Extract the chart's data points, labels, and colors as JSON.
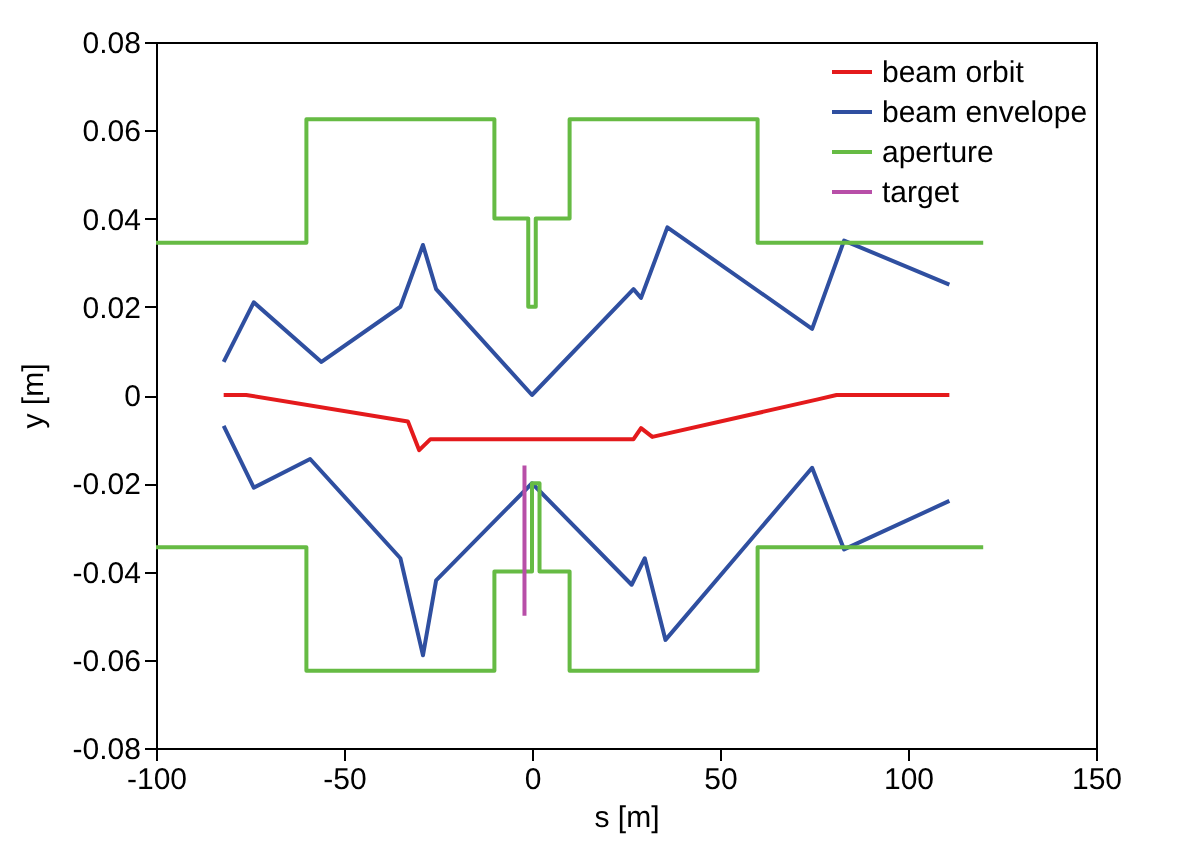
{
  "chart_data": {
    "type": "line",
    "xlabel": "s [m]",
    "ylabel": "y [m]",
    "xlim": [
      -100,
      150
    ],
    "xticks": [
      -100,
      -50,
      0,
      50,
      100,
      150
    ],
    "ylim": [
      -0.08,
      0.08
    ],
    "yticks": [
      -0.08,
      -0.06,
      -0.04,
      -0.02,
      0,
      0.02,
      0.04,
      0.06,
      0.08
    ],
    "grid": false,
    "legend": "top right",
    "marker": "none",
    "line_style": "solid",
    "series": [
      {
        "name": "beam orbit",
        "color": "#e41a1c",
        "x": [
          -82,
          -76,
          -33,
          -30,
          -27,
          27,
          29,
          32,
          76,
          81,
          111
        ],
        "values": [
          0,
          0,
          -0.006,
          -0.0125,
          -0.01,
          -0.01,
          -0.0075,
          -0.0095,
          -0.001,
          0,
          0
        ]
      },
      {
        "name": "beam envelope",
        "color": "#2f4fa0",
        "x": [
          -82,
          -74,
          -56,
          -35,
          -29,
          -25.5,
          0,
          27,
          29,
          36,
          74.5,
          83,
          111,
          null,
          -82,
          -74,
          -59,
          -35,
          -29,
          -25.5,
          0,
          26.5,
          30,
          35.5,
          74.5,
          83,
          111
        ],
        "values": [
          0.0075,
          0.021,
          0.0075,
          0.02,
          0.034,
          0.024,
          0,
          0.024,
          0.022,
          0.038,
          0.015,
          0.035,
          0.025,
          null,
          -0.007,
          -0.021,
          -0.0145,
          -0.037,
          -0.059,
          -0.042,
          -0.02,
          -0.043,
          -0.037,
          -0.0555,
          -0.0165,
          -0.035,
          -0.024
        ]
      },
      {
        "name": "aperture",
        "color": "#66bb44",
        "x": [
          -100,
          -60,
          -60,
          -10,
          -10,
          -1,
          -1,
          1,
          1,
          10,
          10,
          60,
          60,
          120,
          null,
          -100,
          -60,
          -60,
          -10,
          -10,
          0,
          0,
          2,
          2,
          10,
          10,
          60,
          60,
          120
        ],
        "values": [
          0.0345,
          0.0345,
          0.0625,
          0.0625,
          0.04,
          0.04,
          0.02,
          0.02,
          0.04,
          0.04,
          0.0625,
          0.0625,
          0.0345,
          0.0345,
          null,
          -0.0345,
          -0.0345,
          -0.0625,
          -0.0625,
          -0.04,
          -0.04,
          -0.02,
          -0.02,
          -0.04,
          -0.04,
          -0.0625,
          -0.0625,
          -0.0345,
          -0.0345
        ]
      },
      {
        "name": "target",
        "color": "#b84fa8",
        "x": [
          -2,
          -2
        ],
        "values": [
          -0.016,
          -0.05
        ]
      }
    ]
  }
}
